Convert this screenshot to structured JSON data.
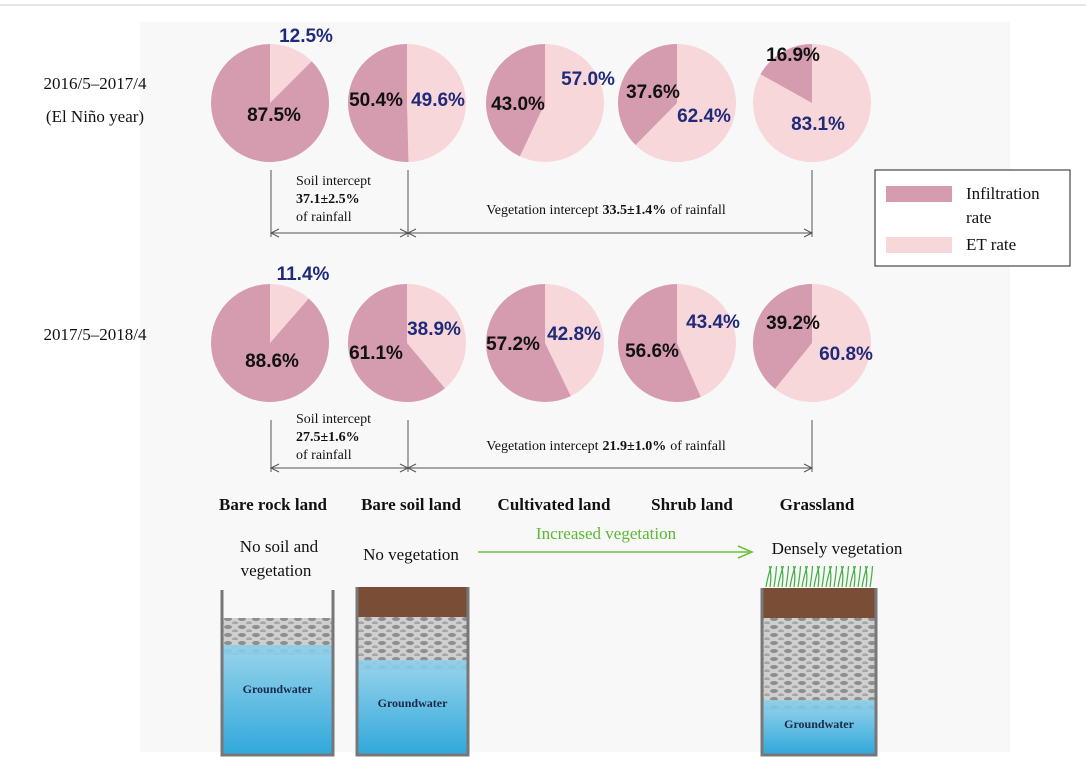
{
  "legend": {
    "items": [
      {
        "lines": [
          "Infiltration",
          "rate"
        ],
        "color": "#d59bae"
      },
      {
        "lines": [
          "ET rate"
        ],
        "color": "#f7d7da"
      }
    ]
  },
  "periods": [
    {
      "label": [
        "2016/5–2017/4",
        "(El Niño year)"
      ],
      "pies": [
        {
          "values": [
            87.5,
            12.5
          ],
          "value_labels": [
            "87.5%",
            "12.5%"
          ]
        },
        {
          "values": [
            50.4,
            49.6
          ],
          "value_labels": [
            "50.4%",
            "49.6%"
          ]
        },
        {
          "values": [
            43.0,
            57.0
          ],
          "value_labels": [
            "43.0%",
            "57.0%"
          ]
        },
        {
          "values": [
            37.6,
            62.4
          ],
          "value_labels": [
            "37.6%",
            "62.4%"
          ]
        },
        {
          "values": [
            16.9,
            83.1
          ],
          "value_labels": [
            "16.9%",
            "83.1%"
          ]
        }
      ],
      "soil_intercept": [
        "Soil intercept",
        "37.1±2.5%",
        "of rainfall"
      ],
      "vegetation_intercept": [
        "Vegetation intercept",
        "33.5±1.4%",
        "of rainfall"
      ]
    },
    {
      "label": [
        "2017/5–2018/4"
      ],
      "pies": [
        {
          "values": [
            88.6,
            11.4
          ],
          "value_labels": [
            "88.6%",
            "11.4%"
          ]
        },
        {
          "values": [
            61.1,
            38.9
          ],
          "value_labels": [
            "61.1%",
            "38.9%"
          ]
        },
        {
          "values": [
            57.2,
            42.8
          ],
          "value_labels": [
            "57.2%",
            "42.8%"
          ]
        },
        {
          "values": [
            56.6,
            43.4
          ],
          "value_labels": [
            "56.6%",
            "43.4%"
          ]
        },
        {
          "values": [
            39.2,
            60.8
          ],
          "value_labels": [
            "39.2%",
            "60.8%"
          ]
        }
      ],
      "soil_intercept": [
        "Soil intercept",
        "27.5±1.6%",
        "of rainfall"
      ],
      "vegetation_intercept": [
        "Vegetation intercept",
        "21.9±1.0%",
        "of rainfall"
      ]
    }
  ],
  "land_types": [
    "Bare rock land",
    "Bare soil land",
    "Cultivated land",
    "Shrub land",
    "Grassland"
  ],
  "descriptions": {
    "bare_rock": [
      "No soil and",
      "vegetation"
    ],
    "bare_soil": "No vegetation",
    "arrow": "Increased vegetation",
    "grassland": "Densely vegetation"
  },
  "groundwater_labels": [
    "Groundwater",
    "Groundwater",
    "Groundwater"
  ]
}
